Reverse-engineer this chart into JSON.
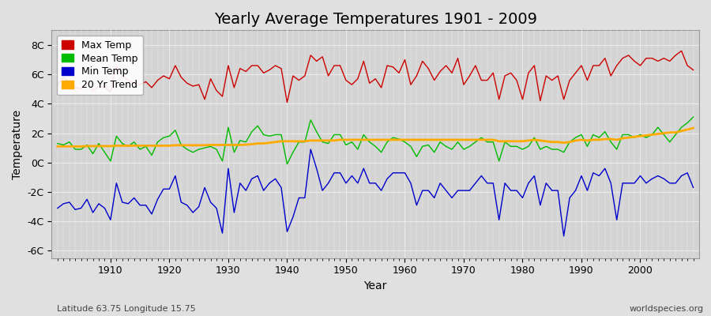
{
  "title": "Yearly Average Temperatures 1901 - 2009",
  "xlabel": "Year",
  "ylabel": "Temperature",
  "subtitle_left": "Latitude 63.75 Longitude 15.75",
  "subtitle_right": "worldspecies.org",
  "years": [
    1901,
    1902,
    1903,
    1904,
    1905,
    1906,
    1907,
    1908,
    1909,
    1910,
    1911,
    1912,
    1913,
    1914,
    1915,
    1916,
    1917,
    1918,
    1919,
    1920,
    1921,
    1922,
    1923,
    1924,
    1925,
    1926,
    1927,
    1928,
    1929,
    1930,
    1931,
    1932,
    1933,
    1934,
    1935,
    1936,
    1937,
    1938,
    1939,
    1940,
    1941,
    1942,
    1943,
    1944,
    1945,
    1946,
    1947,
    1948,
    1949,
    1950,
    1951,
    1952,
    1953,
    1954,
    1955,
    1956,
    1957,
    1958,
    1959,
    1960,
    1961,
    1962,
    1963,
    1964,
    1965,
    1966,
    1967,
    1968,
    1969,
    1970,
    1971,
    1972,
    1973,
    1974,
    1975,
    1976,
    1977,
    1978,
    1979,
    1980,
    1981,
    1982,
    1983,
    1984,
    1985,
    1986,
    1987,
    1988,
    1989,
    1990,
    1991,
    1992,
    1993,
    1994,
    1995,
    1996,
    1997,
    1998,
    1999,
    2000,
    2001,
    2002,
    2003,
    2004,
    2005,
    2006,
    2007,
    2008,
    2009
  ],
  "max_temp": [
    5.3,
    5.8,
    5.5,
    5.1,
    5.0,
    5.4,
    4.9,
    5.2,
    5.1,
    4.8,
    6.6,
    5.9,
    5.6,
    5.4,
    5.3,
    5.5,
    5.1,
    5.6,
    5.9,
    5.7,
    6.6,
    5.8,
    5.4,
    5.2,
    5.3,
    4.3,
    5.7,
    4.9,
    4.5,
    6.6,
    5.1,
    6.4,
    6.2,
    6.6,
    6.6,
    6.1,
    6.3,
    6.6,
    6.4,
    4.1,
    5.9,
    5.6,
    5.9,
    7.3,
    6.9,
    7.2,
    5.9,
    6.6,
    6.6,
    5.6,
    5.3,
    5.7,
    6.9,
    5.4,
    5.7,
    5.1,
    6.6,
    6.5,
    6.1,
    7.0,
    5.3,
    5.9,
    6.9,
    6.4,
    5.6,
    6.2,
    6.6,
    6.1,
    7.1,
    5.3,
    5.9,
    6.6,
    5.6,
    5.6,
    6.1,
    4.3,
    5.9,
    6.1,
    5.6,
    4.3,
    6.1,
    6.6,
    4.2,
    5.9,
    5.6,
    5.9,
    4.3,
    5.6,
    6.1,
    6.6,
    5.6,
    6.6,
    6.6,
    7.1,
    5.9,
    6.6,
    7.1,
    7.3,
    6.9,
    6.6,
    7.1,
    7.1,
    6.9,
    7.1,
    6.9,
    7.3,
    7.6,
    6.6,
    6.3
  ],
  "mean_temp": [
    1.3,
    1.2,
    1.4,
    0.9,
    0.9,
    1.2,
    0.6,
    1.3,
    0.7,
    0.1,
    1.8,
    1.3,
    1.1,
    1.4,
    0.9,
    1.1,
    0.5,
    1.4,
    1.7,
    1.8,
    2.2,
    1.2,
    0.9,
    0.7,
    0.9,
    1.0,
    1.1,
    0.9,
    0.1,
    2.4,
    0.7,
    1.5,
    1.4,
    2.1,
    2.5,
    1.9,
    1.8,
    1.9,
    1.9,
    -0.1,
    0.7,
    1.4,
    1.4,
    2.9,
    2.1,
    1.4,
    1.3,
    1.9,
    1.9,
    1.2,
    1.4,
    0.9,
    1.9,
    1.4,
    1.1,
    0.7,
    1.4,
    1.7,
    1.6,
    1.4,
    1.1,
    0.4,
    1.1,
    1.2,
    0.7,
    1.4,
    1.1,
    0.9,
    1.4,
    0.9,
    1.1,
    1.4,
    1.7,
    1.4,
    1.4,
    0.1,
    1.4,
    1.1,
    1.1,
    0.9,
    1.1,
    1.7,
    0.9,
    1.1,
    0.9,
    0.9,
    0.7,
    1.4,
    1.7,
    1.9,
    1.1,
    1.9,
    1.7,
    2.1,
    1.4,
    0.9,
    1.9,
    1.9,
    1.7,
    1.9,
    1.7,
    1.9,
    2.4,
    1.9,
    1.4,
    1.9,
    2.4,
    2.7,
    3.1
  ],
  "min_temp": [
    -3.1,
    -2.8,
    -2.7,
    -3.2,
    -3.1,
    -2.5,
    -3.4,
    -2.8,
    -3.1,
    -3.9,
    -1.4,
    -2.7,
    -2.8,
    -2.4,
    -2.9,
    -2.9,
    -3.5,
    -2.5,
    -1.8,
    -1.8,
    -0.9,
    -2.7,
    -2.9,
    -3.4,
    -3.0,
    -1.7,
    -2.7,
    -3.1,
    -4.8,
    -0.4,
    -3.4,
    -1.4,
    -1.9,
    -1.1,
    -0.9,
    -1.9,
    -1.4,
    -1.1,
    -1.7,
    -4.7,
    -3.7,
    -2.4,
    -2.4,
    0.9,
    -0.4,
    -1.9,
    -1.4,
    -0.7,
    -0.7,
    -1.4,
    -0.9,
    -1.4,
    -0.4,
    -1.4,
    -1.4,
    -1.9,
    -1.1,
    -0.7,
    -0.7,
    -0.7,
    -1.4,
    -2.9,
    -1.9,
    -1.9,
    -2.4,
    -1.4,
    -1.9,
    -2.4,
    -1.9,
    -1.9,
    -1.9,
    -1.4,
    -0.9,
    -1.4,
    -1.4,
    -3.9,
    -1.4,
    -1.9,
    -1.9,
    -2.4,
    -1.4,
    -0.9,
    -2.9,
    -1.4,
    -1.9,
    -1.9,
    -5.0,
    -2.4,
    -1.9,
    -0.9,
    -1.9,
    -0.7,
    -0.9,
    -0.4,
    -1.4,
    -3.9,
    -1.4,
    -1.4,
    -1.4,
    -0.9,
    -1.4,
    -1.1,
    -0.9,
    -1.1,
    -1.4,
    -1.4,
    -0.9,
    -0.7,
    -1.7
  ],
  "trend": [
    1.1,
    1.1,
    1.1,
    1.1,
    1.1,
    1.12,
    1.12,
    1.12,
    1.12,
    1.12,
    1.15,
    1.15,
    1.15,
    1.15,
    1.15,
    1.15,
    1.15,
    1.15,
    1.15,
    1.15,
    1.18,
    1.18,
    1.18,
    1.18,
    1.18,
    1.18,
    1.2,
    1.2,
    1.2,
    1.2,
    1.2,
    1.2,
    1.22,
    1.25,
    1.3,
    1.3,
    1.35,
    1.4,
    1.45,
    1.45,
    1.45,
    1.45,
    1.45,
    1.5,
    1.5,
    1.5,
    1.5,
    1.5,
    1.55,
    1.55,
    1.55,
    1.55,
    1.55,
    1.55,
    1.55,
    1.55,
    1.55,
    1.55,
    1.55,
    1.55,
    1.55,
    1.55,
    1.55,
    1.55,
    1.55,
    1.55,
    1.55,
    1.55,
    1.55,
    1.55,
    1.55,
    1.55,
    1.55,
    1.55,
    1.55,
    1.45,
    1.45,
    1.45,
    1.45,
    1.45,
    1.5,
    1.55,
    1.5,
    1.45,
    1.4,
    1.4,
    1.35,
    1.4,
    1.5,
    1.55,
    1.5,
    1.55,
    1.55,
    1.6,
    1.6,
    1.55,
    1.65,
    1.7,
    1.75,
    1.8,
    1.85,
    1.9,
    1.95,
    2.0,
    2.05,
    2.05,
    2.15,
    2.25,
    2.35
  ],
  "max_color": "#cc0000",
  "mean_color": "#00bb00",
  "min_color": "#0000cc",
  "trend_color": "#ffaa00",
  "bg_color": "#e0e0e0",
  "plot_bg_color": "#d4d4d4",
  "grid_color": "#f0f0f0",
  "ylim": [
    -6.5,
    9.0
  ],
  "yticks": [
    -6,
    -4,
    -2,
    0,
    2,
    4,
    6,
    8
  ],
  "ytick_labels": [
    "-6C",
    "-4C",
    "-2C",
    "0C",
    "2C",
    "4C",
    "6C",
    "8C"
  ],
  "xticks": [
    1910,
    1920,
    1930,
    1940,
    1950,
    1960,
    1970,
    1980,
    1990,
    2000
  ],
  "legend_items": [
    "Max Temp",
    "Mean Temp",
    "Min Temp",
    "20 Yr Trend"
  ],
  "legend_colors": [
    "#cc0000",
    "#00bb00",
    "#0000cc",
    "#ffaa00"
  ],
  "linewidth": 1.0,
  "title_fontsize": 14,
  "label_fontsize": 10,
  "tick_fontsize": 9,
  "legend_fontsize": 9
}
